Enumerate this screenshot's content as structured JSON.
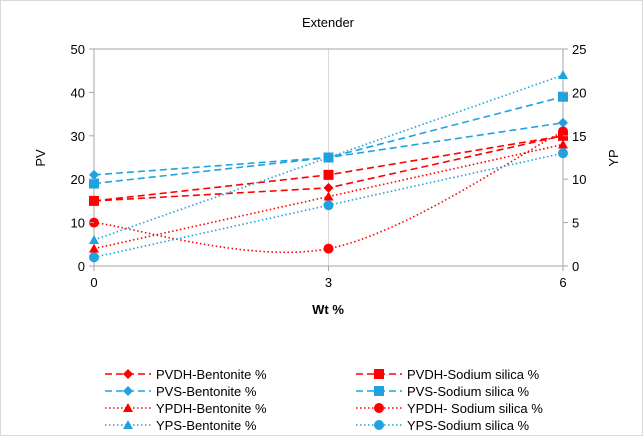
{
  "chart_data": {
    "type": "line",
    "title": "Extender",
    "xlabel": "Wt %",
    "ylabel_left": "PV",
    "ylabel_right": "YP",
    "x": [
      0,
      3,
      6
    ],
    "x_ticks": [
      "0",
      "3",
      "6"
    ],
    "ylim_left": [
      0,
      50
    ],
    "ylim_right": [
      0,
      25
    ],
    "y_ticks_left": [
      "0",
      "10",
      "20",
      "30",
      "40",
      "50"
    ],
    "y_ticks_right": [
      "0",
      "5",
      "10",
      "15",
      "20",
      "25"
    ],
    "grid": "vertical",
    "legend_position": "bottom",
    "series": [
      {
        "name": "PVDH-Bentonite %",
        "axis": "left",
        "values": [
          15,
          18,
          30
        ],
        "color": "#ff0000",
        "marker": "diamond",
        "dash": "dash",
        "smooth": false
      },
      {
        "name": "PVDH-Sodium silica %",
        "axis": "left",
        "values": [
          15,
          21,
          30
        ],
        "color": "#ff0000",
        "marker": "square",
        "dash": "dash",
        "smooth": false
      },
      {
        "name": "PVS-Bentonite %",
        "axis": "left",
        "values": [
          21,
          25,
          33
        ],
        "color": "#1fa3e0",
        "marker": "diamond",
        "dash": "dash",
        "smooth": false
      },
      {
        "name": "PVS-Sodium silica %",
        "axis": "left",
        "values": [
          19,
          25,
          39
        ],
        "color": "#1fa3e0",
        "marker": "square",
        "dash": "dash",
        "smooth": false
      },
      {
        "name": "YPDH-Bentonite %",
        "axis": "right",
        "values": [
          2,
          8,
          14
        ],
        "color": "#ff0000",
        "marker": "triangle",
        "dash": "dot",
        "smooth": false
      },
      {
        "name": "YPDH- Sodium silica %",
        "axis": "right",
        "values": [
          5,
          2,
          15.5
        ],
        "color": "#ff0000",
        "marker": "circle",
        "dash": "dot",
        "smooth": true
      },
      {
        "name": "YPS-Bentonite %",
        "axis": "right",
        "values": [
          3,
          12.5,
          22
        ],
        "color": "#1fa3e0",
        "marker": "triangle",
        "dash": "dot",
        "smooth": false
      },
      {
        "name": "YPS-Sodium silica %",
        "axis": "right",
        "values": [
          1,
          7,
          13
        ],
        "color": "#1fa3e0",
        "marker": "circle",
        "dash": "dot",
        "smooth": false
      }
    ]
  }
}
